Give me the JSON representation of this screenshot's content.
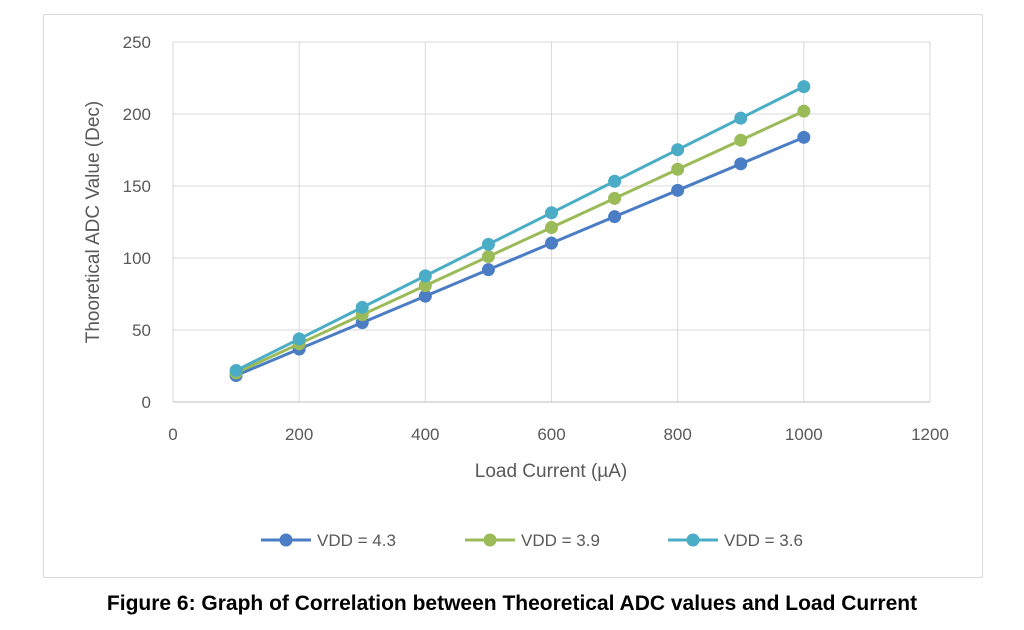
{
  "chart_data": {
    "type": "line",
    "xlabel": "Load Current (µA)",
    "ylabel": "Thooretical ADC Value (Dec)",
    "xlim": [
      0,
      1200
    ],
    "ylim": [
      0,
      250
    ],
    "xticks": [
      0,
      200,
      400,
      600,
      800,
      1000,
      1200
    ],
    "yticks": [
      0,
      50,
      100,
      150,
      200,
      250
    ],
    "grid": true,
    "legend": "bottom",
    "x": [
      100,
      200,
      300,
      400,
      500,
      600,
      700,
      800,
      900,
      1000
    ],
    "series": [
      {
        "name": "VDD = 4.3",
        "color": "#4A7DC4",
        "values": [
          18.4,
          36.8,
          55.1,
          73.5,
          91.9,
          110.3,
          128.7,
          147.0,
          165.4,
          183.8
        ]
      },
      {
        "name": "VDD = 3.9",
        "color": "#9BBB59",
        "values": [
          20.2,
          40.4,
          60.6,
          80.8,
          101.0,
          121.2,
          141.4,
          161.6,
          181.8,
          202.0
        ]
      },
      {
        "name": "VDD = 3.6",
        "color": "#4BACC6",
        "values": [
          21.9,
          43.8,
          65.7,
          87.6,
          109.5,
          131.4,
          153.3,
          175.2,
          197.1,
          219.0
        ]
      }
    ]
  },
  "caption": "Figure 6: Graph of Correlation between Theoretical ADC values and Load Current"
}
